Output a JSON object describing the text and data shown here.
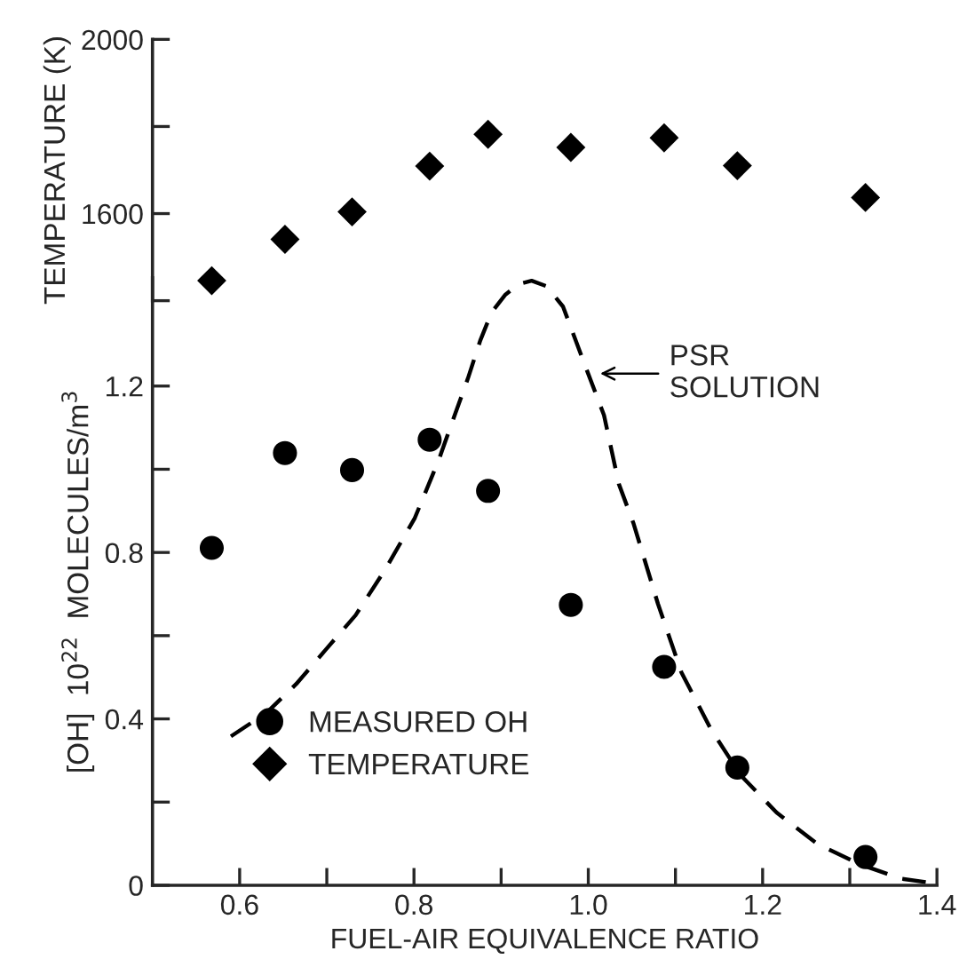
{
  "chart_data": [
    {
      "type": "scatter",
      "ylabel": "TEMPERATURE (K)",
      "xlim": [
        0.5,
        1.4
      ],
      "ylim": [
        1400,
        2000
      ],
      "yticks": [
        {
          "value": 1400,
          "label": null
        },
        1600,
        {
          "value": 1800,
          "label": null
        },
        2000
      ],
      "tick_labels": "y",
      "grid": false,
      "series": [
        {
          "name": "TEMPERATURE",
          "marker": "diamond",
          "color": "#000000",
          "x": [
            0.568,
            0.652,
            0.729,
            0.818,
            0.885,
            0.98,
            1.087,
            1.171,
            1.318
          ],
          "values": [
            1446,
            1541,
            1604,
            1709,
            1782,
            1752,
            1774,
            1710,
            1637
          ]
        }
      ]
    },
    {
      "type": "scatter",
      "xlabel": "FUEL-AIR EQUIVALENCE RATIO",
      "ylabel": "[OH]  10$^{22}$  MOLECULES/m$^{3}$",
      "xlim": [
        0.5,
        1.4
      ],
      "ylim": [
        0,
        1.46
      ],
      "xticks": [
        0.6,
        {
          "value": 0.7,
          "label": null
        },
        0.8,
        {
          "value": 0.9,
          "label": null
        },
        {
          "value": 1.0,
          "label": "1.0"
        },
        {
          "value": 1.1,
          "label": null
        },
        1.2,
        {
          "value": 1.3,
          "label": null
        },
        1.4
      ],
      "yticks": [
        0,
        {
          "value": 0.2,
          "label": null
        },
        0.4,
        {
          "value": 0.6,
          "label": null
        },
        0.8,
        {
          "value": 1.0,
          "label": null
        },
        1.2
      ],
      "grid": false,
      "legend": "bottom left",
      "annotations": [
        {
          "text": "PSR\nSOLUTION",
          "x": 1.008,
          "y": 1.23
        }
      ],
      "series": [
        {
          "name": "MEASURED OH",
          "marker": "circle",
          "color": "#000000",
          "x": [
            0.568,
            0.652,
            0.729,
            0.818,
            0.885,
            0.98,
            1.087,
            1.171,
            1.318
          ],
          "values": [
            0.811,
            1.039,
            0.998,
            1.071,
            0.948,
            0.674,
            0.525,
            0.283,
            0.068
          ]
        },
        {
          "type": "line",
          "line_style": "dashed",
          "marker": "none",
          "color": "#000000",
          "x": [
            0.59,
            0.631,
            0.665,
            0.699,
            0.733,
            0.767,
            0.801,
            0.828,
            0.845,
            0.862,
            0.876,
            0.889,
            0.905,
            0.92,
            0.935,
            0.952,
            0.971,
            0.998,
            1.018,
            1.035,
            1.052,
            1.08,
            1.107,
            1.141,
            1.175,
            1.216,
            1.263,
            1.311,
            1.359,
            1.393
          ],
          "values": [
            0.358,
            0.415,
            0.484,
            0.567,
            0.649,
            0.759,
            0.883,
            1.02,
            1.12,
            1.219,
            1.309,
            1.377,
            1.42,
            1.445,
            1.453,
            1.44,
            1.391,
            1.24,
            1.13,
            0.965,
            0.869,
            0.676,
            0.511,
            0.374,
            0.264,
            0.175,
            0.099,
            0.051,
            0.016,
            0.006
          ]
        }
      ]
    }
  ]
}
